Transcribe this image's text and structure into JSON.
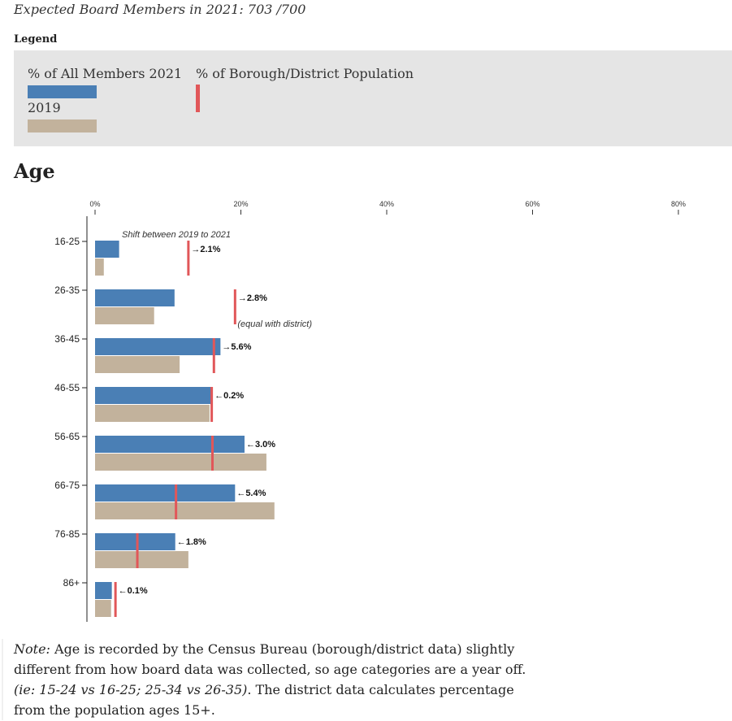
{
  "header": {
    "subtitle": "Expected Board Members in 2021: 703 /700",
    "legend_title": "Legend",
    "section_title": "Age"
  },
  "legend": {
    "members_2021": "% of All Members 2021",
    "members_2019": "2019",
    "population": "% of Borough/District Population"
  },
  "colors": {
    "members_2021": "#4a7fb5",
    "members_2019": "#c2b29c",
    "population": "#e15759"
  },
  "note": {
    "lead": "Note:",
    "text1": " Age is recorded by the Census Bureau (borough/district data) slightly different from how board data was collected, so age categories are a year off. ",
    "example": "(ie: 15-24 vs 16-25; 25-34 vs 26-35)",
    "text2": ". The district data calculates percentage from the population ages 15+."
  },
  "chart_data": {
    "type": "bar",
    "orientation": "horizontal",
    "x_ticks": [
      "0%",
      "20%",
      "40%",
      "60%",
      "80%"
    ],
    "xlim": [
      0,
      80
    ],
    "categories": [
      "16-25",
      "26-35",
      "36-45",
      "46-55",
      "56-65",
      "66-75",
      "76-85",
      "86+"
    ],
    "series": [
      {
        "name": "% of All Members 2021",
        "values": [
          3.3,
          10.9,
          17.2,
          15.9,
          20.5,
          19.2,
          11.0,
          2.3
        ]
      },
      {
        "name": "2019",
        "values": [
          1.2,
          8.1,
          11.6,
          15.7,
          23.5,
          24.6,
          12.8,
          2.2
        ]
      },
      {
        "name": "% of Borough/District Population",
        "values": [
          12.8,
          19.2,
          16.3,
          16.0,
          16.1,
          11.1,
          5.8,
          2.8
        ]
      }
    ],
    "shift_labels": [
      "→2.1%",
      "→2.8%",
      "→5.6%",
      "←0.2%",
      "←3.0%",
      "←5.4%",
      "←1.8%",
      "←0.1%"
    ],
    "annotations": {
      "shift_title": "Shift between 2019 to 2021",
      "equal_note": "(equal with district)"
    }
  }
}
